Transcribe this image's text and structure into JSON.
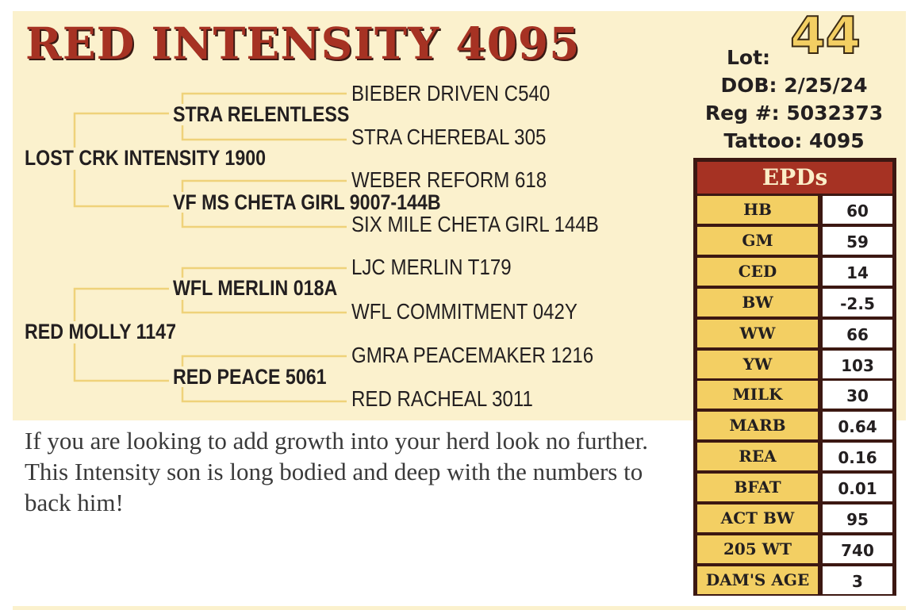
{
  "title": "RED INTENSITY 4095",
  "pedigree": {
    "sire": "LOST CRK INTENSITY 1900",
    "sire_sire": "STRA RELENTLESS",
    "sire_sire_sire": "BIEBER DRIVEN C540",
    "sire_sire_dam": "STRA CHEREBAL 305",
    "sire_dam": "VF MS CHETA GIRL 9007-144B",
    "sire_dam_sire": "WEBER REFORM 618",
    "sire_dam_dam": "SIX MILE CHETA GIRL 144B",
    "dam": "RED MOLLY 1147",
    "dam_sire": "WFL MERLIN 018A",
    "dam_sire_sire": "LJC MERLIN T179",
    "dam_sire_dam": "WFL COMMITMENT 042Y",
    "dam_dam": "RED PEACE 5061",
    "dam_dam_sire": "GMRA PEACEMAKER 1216",
    "dam_dam_dam": "RED RACHEAL 3011"
  },
  "description": "If you are looking to add growth into your herd look no further. This Intensity son is long bodied and deep with the numbers to back him!",
  "info": {
    "lot_label": "Lot:",
    "lot_number": "44",
    "dob": "DOB: 2/25/24",
    "reg": "Reg #:  5032373",
    "tattoo": "Tattoo:  4095"
  },
  "epds": {
    "header": "EPDs",
    "rows": [
      {
        "name": "HB",
        "value": "60"
      },
      {
        "name": "GM",
        "value": "59"
      },
      {
        "name": "CED",
        "value": "14"
      },
      {
        "name": "BW",
        "value": "-2.5"
      },
      {
        "name": "WW",
        "value": "66"
      },
      {
        "name": "YW",
        "value": "103"
      },
      {
        "name": "MILK",
        "value": "30"
      },
      {
        "name": "MARB",
        "value": "0.64"
      },
      {
        "name": "REA",
        "value": "0.16"
      },
      {
        "name": "BFAT",
        "value": "0.01"
      },
      {
        "name": "ACT BW",
        "value": "95"
      },
      {
        "name": "205 WT",
        "value": "740"
      },
      {
        "name": "DAM'S AGE",
        "value": "3"
      }
    ]
  },
  "colors": {
    "panel": "#fbf1cd",
    "title_red": "#a63223",
    "epd_gold": "#f3cf63",
    "line_gold": "#efd27a"
  }
}
